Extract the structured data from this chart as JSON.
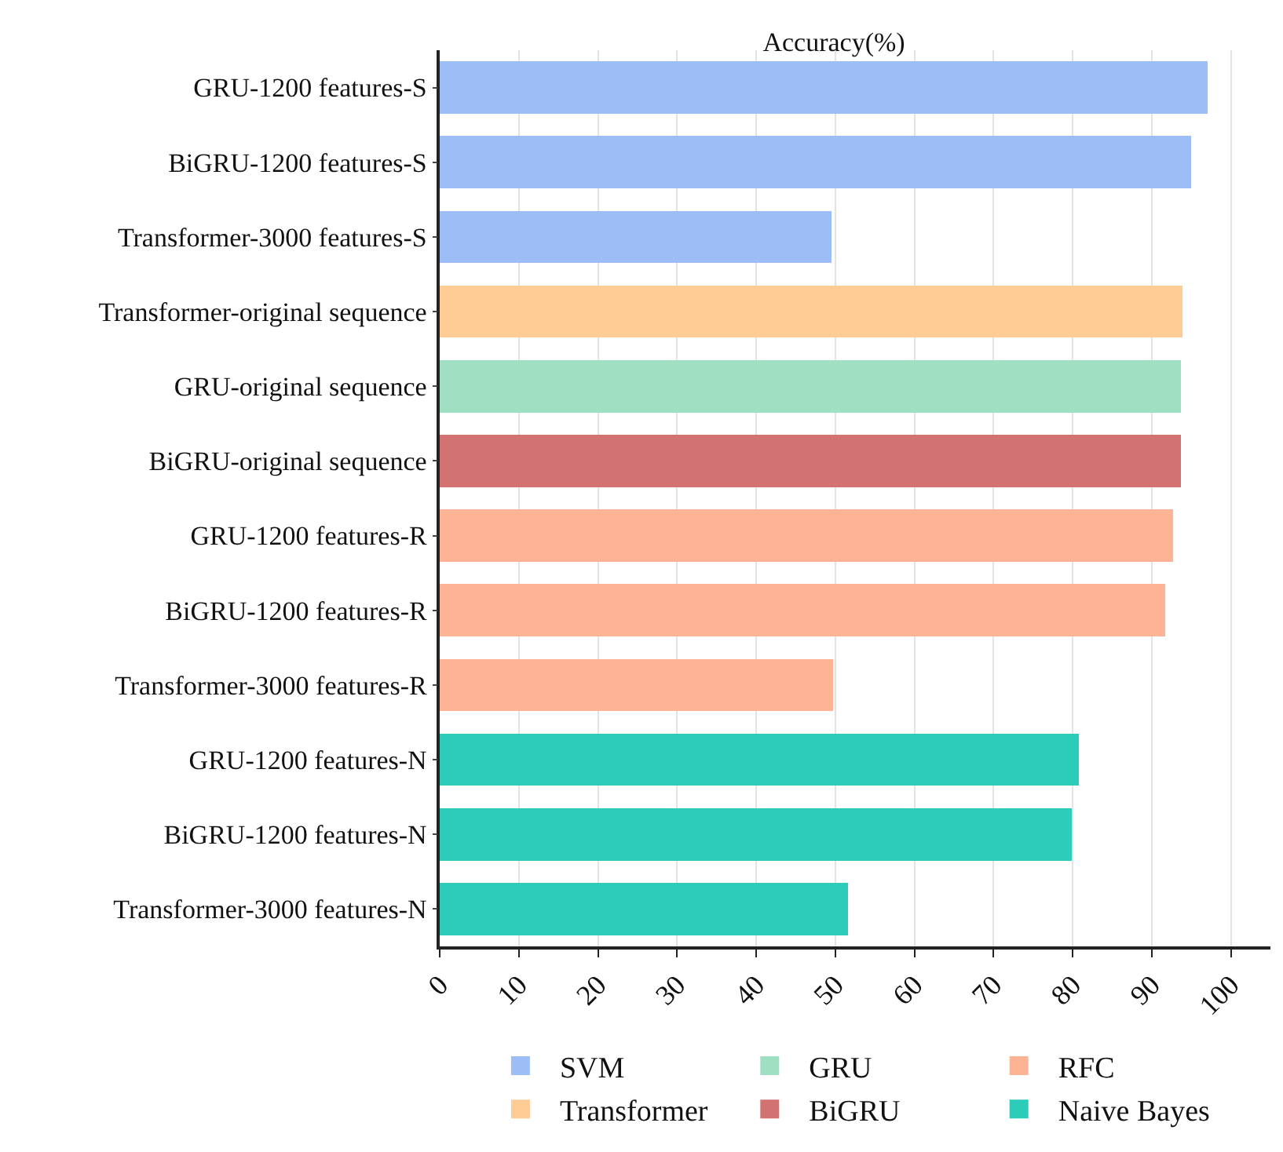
{
  "chart_data": {
    "type": "bar",
    "orientation": "horizontal",
    "stacked": true,
    "title": "Accuracy(%)",
    "categories": [
      "GRU-1200 features-S",
      "BiGRU-1200 features-S",
      "Transformer-3000 features-S",
      "Transformer-original sequence",
      "GRU-original sequence",
      "BiGRU-original sequence",
      "GRU-1200 features-R",
      "BiGRU-1200 features-R",
      "Transformer-3000 features-R",
      "GRU-1200 features-N",
      "BiGRU-1200 features-N",
      "Transformer-3000 features-N"
    ],
    "series": [
      {
        "name": "SVM",
        "color": "#9dbdf7",
        "values": [
          97.1,
          95.0,
          49.5,
          null,
          null,
          null,
          null,
          null,
          null,
          null,
          null,
          null
        ]
      },
      {
        "name": "Transformer",
        "color": "#fecc94",
        "values": [
          null,
          null,
          null,
          93.9,
          null,
          null,
          null,
          null,
          null,
          null,
          null,
          null
        ]
      },
      {
        "name": "GRU",
        "color": "#a0dfc2",
        "values": [
          null,
          null,
          null,
          null,
          93.7,
          null,
          null,
          null,
          null,
          null,
          null,
          null
        ]
      },
      {
        "name": "BiGRU",
        "color": "#d27372",
        "values": [
          null,
          null,
          null,
          null,
          null,
          93.7,
          null,
          null,
          null,
          null,
          null,
          null
        ]
      },
      {
        "name": "RFC",
        "color": "#feb394",
        "values": [
          null,
          null,
          null,
          null,
          null,
          null,
          92.7,
          91.7,
          49.7,
          null,
          null,
          null
        ]
      },
      {
        "name": "Naive Bayes",
        "color": "#2ccbba",
        "values": [
          null,
          null,
          null,
          null,
          null,
          null,
          null,
          null,
          null,
          80.8,
          79.9,
          51.6
        ]
      }
    ],
    "xlim": [
      0,
      105
    ],
    "xticks": [
      0,
      10,
      20,
      30,
      40,
      50,
      60,
      70,
      80,
      90,
      100
    ],
    "grid": "x",
    "legend": "bottom"
  }
}
